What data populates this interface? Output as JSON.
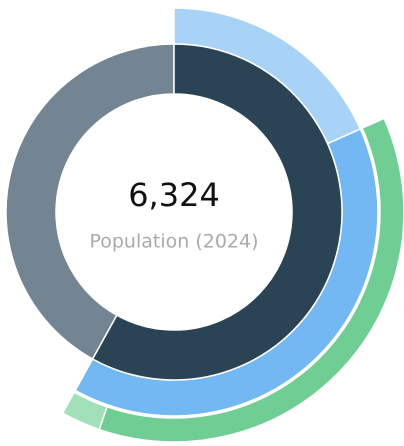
{
  "chart_data": {
    "type": "sunburst",
    "center": {
      "value": 6324,
      "label": "6,324"
    },
    "subtitle": "Population (2024)",
    "nodes": [
      {
        "value": 3671,
        "color": "#2a4355",
        "children": [
          {
            "value": 1159,
            "color": "#a8d3f7"
          },
          {
            "value": 2512,
            "color": "#74b8f3",
            "children": [
              {
                "value": 2336,
                "color": "#70ce94"
              },
              {
                "value": 176,
                "color": "#a2e0b9"
              }
            ]
          }
        ]
      },
      {
        "value": 2653,
        "color": "#738592"
      }
    ]
  }
}
